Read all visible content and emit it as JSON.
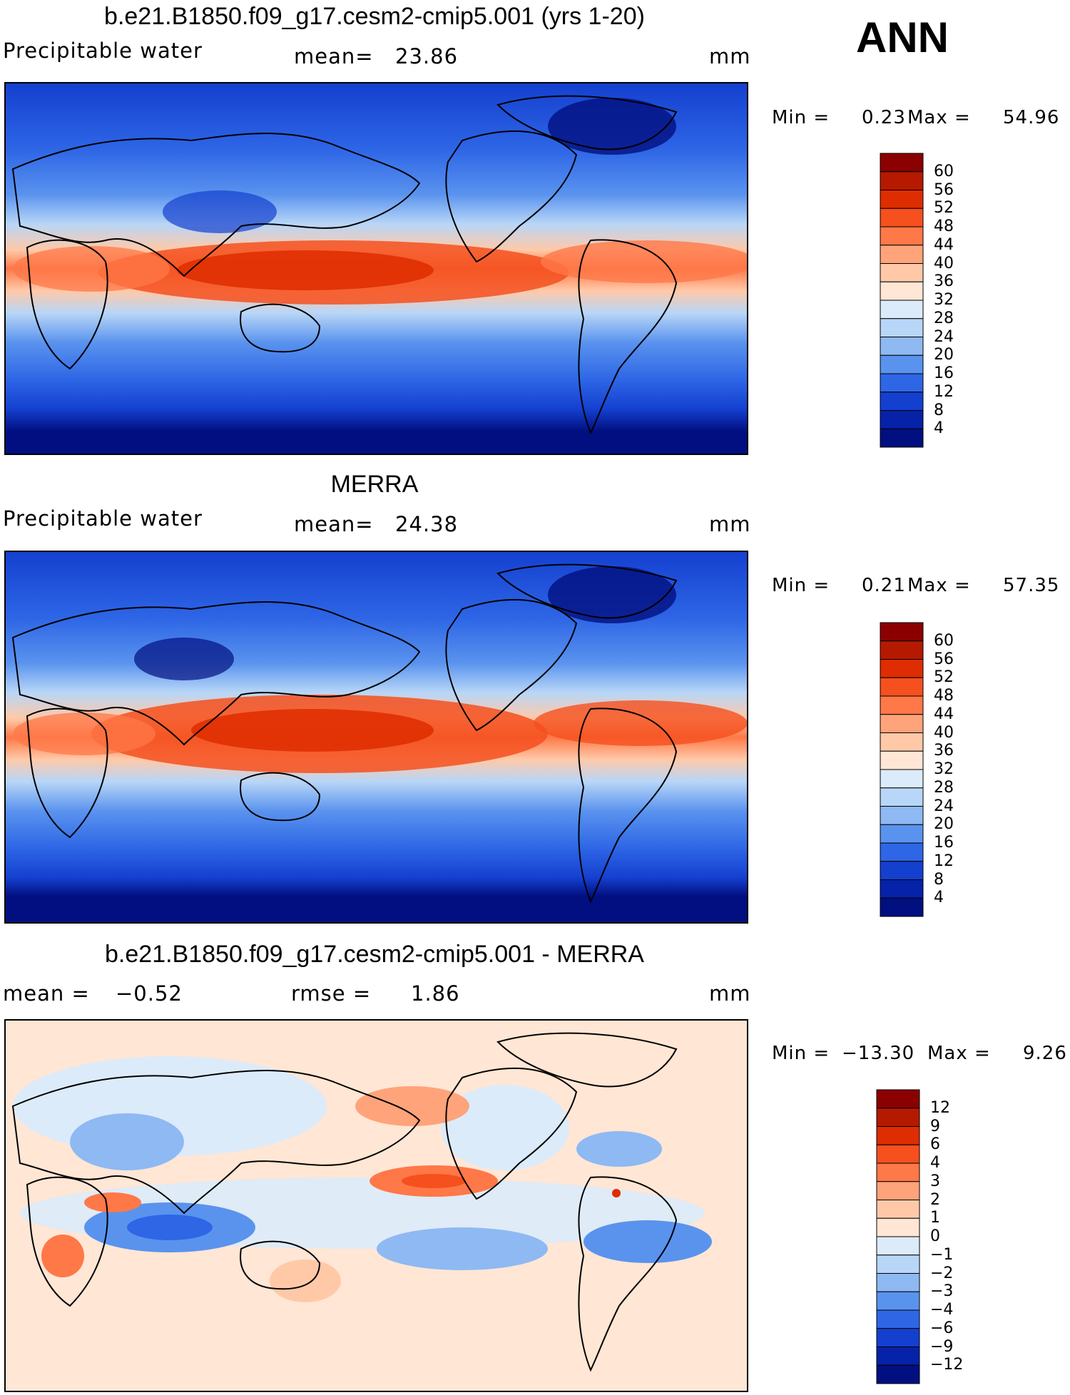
{
  "season": "ANN",
  "panels": [
    {
      "id": "model",
      "title": "b.e21.B1850.f09_g17.cesm2-cmip5.001 (yrs 1-20)",
      "variable": "Precipitable water",
      "stat1_label": "mean=",
      "stat1_value": "23.86",
      "stat2_label": "",
      "stat2_value": "",
      "units": "mm",
      "min_label": "Min =",
      "min_value": "0.23",
      "max_label": "Max =",
      "max_value": "54.96",
      "colorbar_levels": [
        "60",
        "56",
        "52",
        "48",
        "44",
        "40",
        "36",
        "32",
        "28",
        "24",
        "20",
        "16",
        "12",
        "8",
        "4"
      ],
      "colorbar_colors": [
        "#8b0000",
        "#b51a00",
        "#de2d00",
        "#f5501e",
        "#ff7848",
        "#ffa37a",
        "#ffc9a8",
        "#ffe6d5",
        "#dcebfa",
        "#b8d6f7",
        "#8eb9f3",
        "#5a93ee",
        "#2e66e6",
        "#1440cf",
        "#0522a8",
        "#020f80"
      ]
    },
    {
      "id": "obs",
      "title": "MERRA",
      "variable": "Precipitable water",
      "stat1_label": "mean=",
      "stat1_value": "24.38",
      "stat2_label": "",
      "stat2_value": "",
      "units": "mm",
      "min_label": "Min =",
      "min_value": "0.21",
      "max_label": "Max =",
      "max_value": "57.35",
      "colorbar_levels": [
        "60",
        "56",
        "52",
        "48",
        "44",
        "40",
        "36",
        "32",
        "28",
        "24",
        "20",
        "16",
        "12",
        "8",
        "4"
      ],
      "colorbar_colors": [
        "#8b0000",
        "#b51a00",
        "#de2d00",
        "#f5501e",
        "#ff7848",
        "#ffa37a",
        "#ffc9a8",
        "#ffe6d5",
        "#dcebfa",
        "#b8d6f7",
        "#8eb9f3",
        "#5a93ee",
        "#2e66e6",
        "#1440cf",
        "#0522a8",
        "#020f80"
      ]
    },
    {
      "id": "diff",
      "title": "b.e21.B1850.f09_g17.cesm2-cmip5.001 - MERRA",
      "variable": "",
      "stat1_label": "mean =",
      "stat1_value": "−0.52",
      "stat2_label": "rmse =",
      "stat2_value": "1.86",
      "units": "mm",
      "min_label": "Min =",
      "min_value": "−13.30",
      "max_label": "Max =",
      "max_value": "9.26",
      "colorbar_levels": [
        "12",
        "9",
        "6",
        "4",
        "3",
        "2",
        "1",
        "0",
        "−1",
        "−2",
        "−3",
        "−4",
        "−6",
        "−9",
        "−12"
      ],
      "colorbar_colors": [
        "#8b0000",
        "#b51a00",
        "#de2d00",
        "#f5501e",
        "#ff7848",
        "#ffa37a",
        "#ffc9a8",
        "#ffe6d5",
        "#dcebfa",
        "#b8d6f7",
        "#8eb9f3",
        "#5a93ee",
        "#2e66e6",
        "#1440cf",
        "#0522a8",
        "#020f80"
      ]
    }
  ]
}
